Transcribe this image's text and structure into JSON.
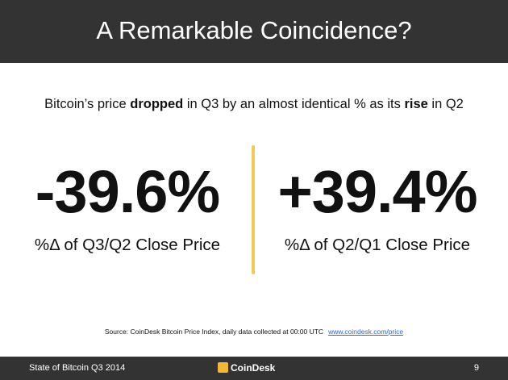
{
  "header": {
    "title": "A Remarkable Coincidence?"
  },
  "subtitle": [
    "Bitcoin’s price ",
    "dropped",
    " in Q3 by an almost identical % as its ",
    "rise",
    " in Q2"
  ],
  "stats": [
    {
      "value": "-39.6%",
      "label": "%Δ of Q3/Q2 Close Price"
    },
    {
      "value": "+39.4%",
      "label": "%Δ of Q2/Q1 Close Price"
    }
  ],
  "source": {
    "text": "Source: CoinDesk Bitcoin Price Index, daily data collected at 00:00 UTC",
    "link": "www.coindesk.com/price"
  },
  "footer": {
    "left": "State of Bitcoin Q3 2014",
    "brand": "CoinDesk",
    "page": "9"
  }
}
